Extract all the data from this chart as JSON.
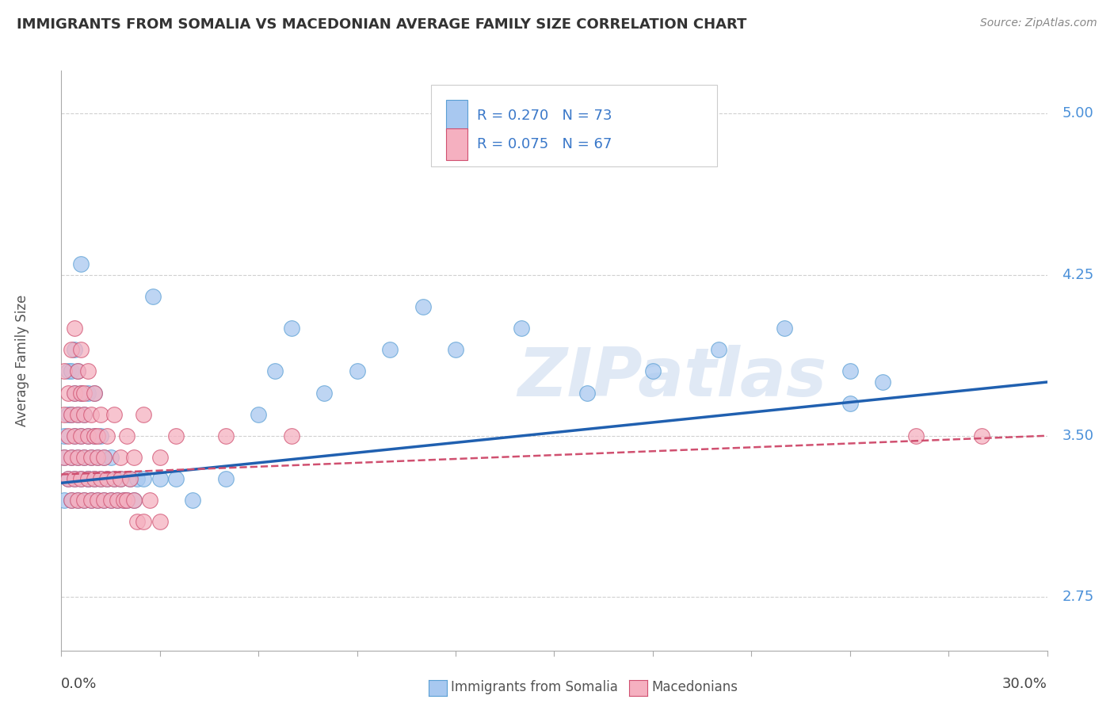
{
  "title": "IMMIGRANTS FROM SOMALIA VS MACEDONIAN AVERAGE FAMILY SIZE CORRELATION CHART",
  "source": "Source: ZipAtlas.com",
  "ylabel": "Average Family Size",
  "yticks": [
    2.75,
    3.5,
    4.25,
    5.0
  ],
  "xlim": [
    0.0,
    0.3
  ],
  "ylim": [
    2.5,
    5.2
  ],
  "watermark": "ZIPatlas",
  "background_color": "#ffffff",
  "grid_color": "#d0d0d0",
  "series": [
    {
      "name": "Immigrants from Somalia",
      "R": 0.27,
      "N": 73,
      "color": "#a8c8f0",
      "edge_color": "#5a9fd4",
      "trend_color": "#2060b0",
      "trend_style": "solid",
      "trend_x0": 0.0,
      "trend_x1": 0.3,
      "trend_y0": 3.28,
      "trend_y1": 3.75,
      "points_x": [
        0.001,
        0.001,
        0.001,
        0.002,
        0.002,
        0.002,
        0.003,
        0.003,
        0.003,
        0.003,
        0.004,
        0.004,
        0.004,
        0.004,
        0.005,
        0.005,
        0.005,
        0.005,
        0.006,
        0.006,
        0.006,
        0.007,
        0.007,
        0.007,
        0.008,
        0.008,
        0.008,
        0.009,
        0.009,
        0.01,
        0.01,
        0.01,
        0.011,
        0.011,
        0.012,
        0.012,
        0.013,
        0.013,
        0.014,
        0.015,
        0.015,
        0.016,
        0.017,
        0.018,
        0.019,
        0.02,
        0.021,
        0.022,
        0.023,
        0.025,
        0.028,
        0.03,
        0.035,
        0.04,
        0.05,
        0.06,
        0.065,
        0.07,
        0.08,
        0.09,
        0.1,
        0.11,
        0.12,
        0.14,
        0.16,
        0.18,
        0.2,
        0.22,
        0.24,
        0.006,
        0.008,
        0.24,
        0.25
      ],
      "points_y": [
        3.2,
        3.4,
        3.5,
        3.3,
        3.6,
        3.8,
        3.2,
        3.4,
        3.6,
        3.8,
        3.3,
        3.5,
        3.7,
        3.9,
        3.2,
        3.4,
        3.6,
        3.8,
        3.3,
        3.5,
        3.7,
        3.2,
        3.4,
        3.6,
        3.3,
        3.5,
        3.7,
        3.2,
        3.4,
        3.3,
        3.5,
        3.7,
        3.2,
        3.4,
        3.3,
        3.5,
        3.2,
        3.4,
        3.3,
        3.2,
        3.4,
        3.3,
        3.2,
        3.3,
        3.2,
        3.2,
        3.3,
        3.2,
        3.3,
        3.3,
        4.15,
        3.3,
        3.3,
        3.2,
        3.3,
        3.6,
        3.8,
        4.0,
        3.7,
        3.8,
        3.9,
        4.1,
        3.9,
        4.0,
        3.7,
        3.8,
        3.9,
        4.0,
        3.8,
        4.3,
        3.3,
        3.65,
        3.75
      ]
    },
    {
      "name": "Macedonians",
      "R": 0.075,
      "N": 67,
      "color": "#f5b0c0",
      "edge_color": "#d05070",
      "trend_color": "#d05070",
      "trend_style": "dashed",
      "trend_x0": 0.0,
      "trend_x1": 0.3,
      "trend_y0": 3.32,
      "trend_y1": 3.5,
      "points_x": [
        0.001,
        0.001,
        0.001,
        0.002,
        0.002,
        0.002,
        0.003,
        0.003,
        0.003,
        0.004,
        0.004,
        0.004,
        0.005,
        0.005,
        0.005,
        0.006,
        0.006,
        0.006,
        0.007,
        0.007,
        0.007,
        0.008,
        0.008,
        0.009,
        0.009,
        0.01,
        0.01,
        0.011,
        0.011,
        0.012,
        0.013,
        0.014,
        0.015,
        0.016,
        0.017,
        0.018,
        0.019,
        0.02,
        0.021,
        0.022,
        0.023,
        0.025,
        0.027,
        0.03,
        0.003,
        0.004,
        0.005,
        0.006,
        0.007,
        0.008,
        0.009,
        0.01,
        0.011,
        0.012,
        0.013,
        0.014,
        0.016,
        0.018,
        0.02,
        0.022,
        0.025,
        0.03,
        0.035,
        0.05,
        0.07,
        0.26,
        0.28
      ],
      "points_y": [
        3.4,
        3.6,
        3.8,
        3.3,
        3.5,
        3.7,
        3.2,
        3.4,
        3.6,
        3.3,
        3.5,
        3.7,
        3.2,
        3.4,
        3.6,
        3.3,
        3.5,
        3.7,
        3.2,
        3.4,
        3.6,
        3.3,
        3.5,
        3.2,
        3.4,
        3.3,
        3.5,
        3.2,
        3.4,
        3.3,
        3.2,
        3.3,
        3.2,
        3.3,
        3.2,
        3.3,
        3.2,
        3.2,
        3.3,
        3.2,
        3.1,
        3.1,
        3.2,
        3.1,
        3.9,
        4.0,
        3.8,
        3.9,
        3.7,
        3.8,
        3.6,
        3.7,
        3.5,
        3.6,
        3.4,
        3.5,
        3.6,
        3.4,
        3.5,
        3.4,
        3.6,
        3.4,
        3.5,
        3.5,
        3.5,
        3.5,
        3.5
      ]
    }
  ]
}
